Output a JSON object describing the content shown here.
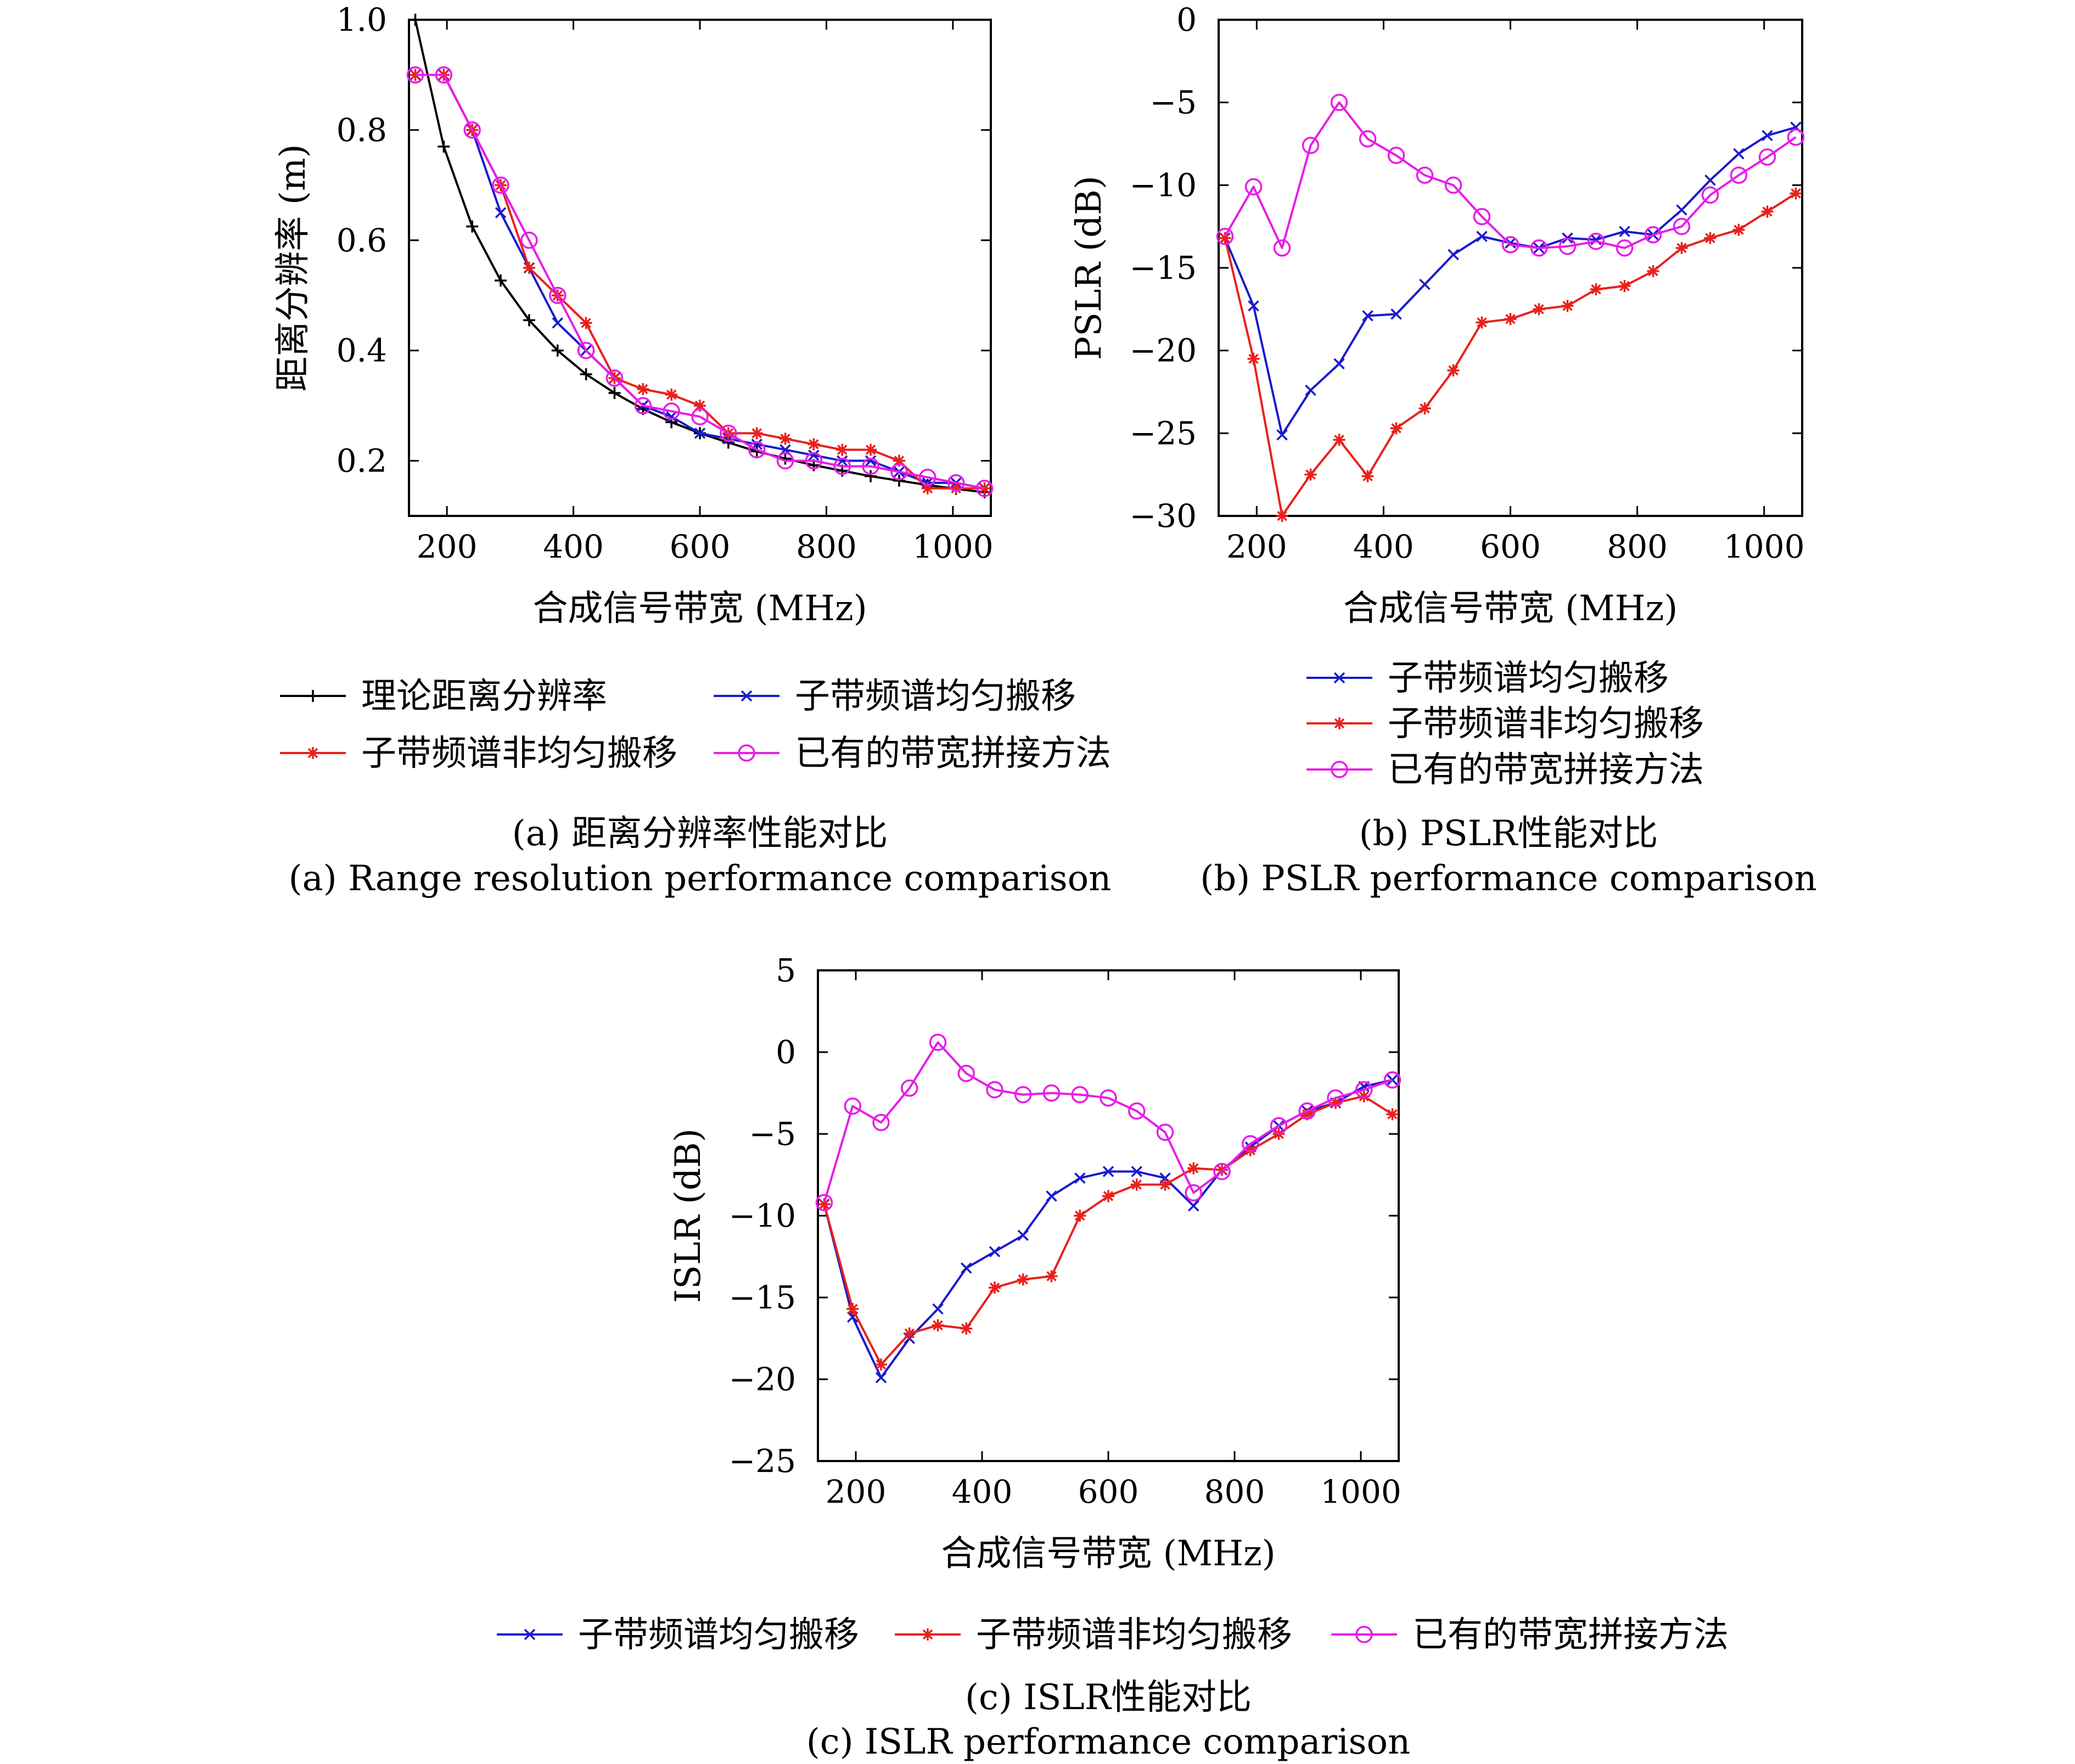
{
  "colors": {
    "theory": "#000000",
    "uniform": "#1a1acc",
    "nonuniform": "#e8211c",
    "existing": "#e61ee6",
    "axis": "#000000"
  },
  "chart_data": [
    {
      "id": "a",
      "type": "line",
      "xlabel": "合成信号带宽 (MHz)",
      "ylabel": "距离分辨率 (m)",
      "xlim": [
        140,
        1060
      ],
      "ylim": [
        0.1,
        1.0
      ],
      "xticks": [
        200,
        400,
        600,
        800,
        1000
      ],
      "yticks": [
        0.2,
        0.4,
        0.6,
        0.8,
        1.0
      ],
      "ytick_labels": [
        "0.2",
        "0.4",
        "0.6",
        "0.8",
        "1.0"
      ],
      "caption_cn": "(a) 距离分辨率性能对比",
      "caption_en": "(a) Range resolution performance comparison",
      "series": [
        {
          "key": "theory",
          "name": "理论距离分辨率",
          "marker": "plus",
          "x": [
            150,
            195,
            240,
            285,
            330,
            375,
            420,
            465,
            510,
            555,
            600,
            645,
            690,
            735,
            780,
            825,
            870,
            915,
            960,
            1005,
            1050
          ],
          "y": [
            1.0,
            0.77,
            0.625,
            0.527,
            0.455,
            0.4,
            0.357,
            0.323,
            0.294,
            0.27,
            0.25,
            0.233,
            0.217,
            0.204,
            0.192,
            0.182,
            0.172,
            0.164,
            0.156,
            0.149,
            0.143
          ]
        },
        {
          "key": "uniform",
          "name": "子带频谱均匀搬移",
          "marker": "x",
          "x": [
            150,
            195,
            240,
            285,
            330,
            375,
            420,
            465,
            510,
            555,
            600,
            645,
            690,
            735,
            780,
            825,
            870,
            915,
            960,
            1005,
            1050
          ],
          "y": [
            0.9,
            0.9,
            0.8,
            0.65,
            0.55,
            0.45,
            0.4,
            0.35,
            0.3,
            0.28,
            0.25,
            0.24,
            0.23,
            0.22,
            0.21,
            0.2,
            0.2,
            0.18,
            0.16,
            0.16,
            0.15
          ]
        },
        {
          "key": "nonuniform",
          "name": "子带频谱非均匀搬移",
          "marker": "star",
          "x": [
            150,
            195,
            240,
            285,
            330,
            375,
            420,
            465,
            510,
            555,
            600,
            645,
            690,
            735,
            780,
            825,
            870,
            915,
            960,
            1005,
            1050
          ],
          "y": [
            0.9,
            0.9,
            0.8,
            0.7,
            0.55,
            0.5,
            0.45,
            0.35,
            0.33,
            0.32,
            0.3,
            0.25,
            0.25,
            0.24,
            0.23,
            0.22,
            0.22,
            0.2,
            0.15,
            0.15,
            0.15
          ]
        },
        {
          "key": "existing",
          "name": "已有的带宽拼接方法",
          "marker": "circle",
          "x": [
            150,
            195,
            240,
            285,
            330,
            375,
            420,
            465,
            510,
            555,
            600,
            645,
            690,
            735,
            780,
            825,
            870,
            915,
            960,
            1005,
            1050
          ],
          "y": [
            0.9,
            0.9,
            0.8,
            0.7,
            0.6,
            0.5,
            0.4,
            0.35,
            0.3,
            0.29,
            0.28,
            0.25,
            0.22,
            0.2,
            0.2,
            0.19,
            0.19,
            0.18,
            0.17,
            0.16,
            0.15
          ]
        }
      ]
    },
    {
      "id": "b",
      "type": "line",
      "xlabel": "合成信号带宽 (MHz)",
      "ylabel": "PSLR (dB)",
      "xlim": [
        140,
        1060
      ],
      "ylim": [
        -30,
        0
      ],
      "xticks": [
        200,
        400,
        600,
        800,
        1000
      ],
      "yticks": [
        -30,
        -25,
        -20,
        -15,
        -10,
        -5,
        0
      ],
      "ytick_labels": [
        "−30",
        "−25",
        "−20",
        "−15",
        "−10",
        "−5",
        "0"
      ],
      "caption_cn": "(b) PSLR性能对比",
      "caption_en": "(b) PSLR performance comparison",
      "series": [
        {
          "key": "uniform",
          "name": "子带频谱均匀搬移",
          "marker": "x",
          "x": [
            150,
            195,
            240,
            285,
            330,
            375,
            420,
            465,
            510,
            555,
            600,
            645,
            690,
            735,
            780,
            825,
            870,
            915,
            960,
            1005,
            1050
          ],
          "y": [
            -13.2,
            -17.3,
            -25.1,
            -22.4,
            -20.8,
            -17.9,
            -17.8,
            -16,
            -14.2,
            -13.1,
            -13.5,
            -13.8,
            -13.2,
            -13.3,
            -12.8,
            -13,
            -11.5,
            -9.7,
            -8.1,
            -7,
            -6.5
          ]
        },
        {
          "key": "nonuniform",
          "name": "子带频谱非均匀搬移",
          "marker": "star",
          "x": [
            150,
            195,
            240,
            285,
            330,
            375,
            420,
            465,
            510,
            555,
            600,
            645,
            690,
            735,
            780,
            825,
            870,
            915,
            960,
            1005,
            1050
          ],
          "y": [
            -13.2,
            -20.5,
            -30,
            -27.5,
            -25.4,
            -27.6,
            -24.7,
            -23.5,
            -21.2,
            -18.3,
            -18.1,
            -17.5,
            -17.3,
            -16.3,
            -16.1,
            -15.2,
            -13.8,
            -13.2,
            -12.7,
            -11.6,
            -10.5
          ]
        },
        {
          "key": "existing",
          "name": "已有的带宽拼接方法",
          "marker": "circle",
          "x": [
            150,
            195,
            240,
            285,
            330,
            375,
            420,
            465,
            510,
            555,
            600,
            645,
            690,
            735,
            780,
            825,
            870,
            915,
            960,
            1005,
            1050
          ],
          "y": [
            -13.1,
            -10.1,
            -13.8,
            -7.6,
            -5,
            -7.2,
            -8.2,
            -9.4,
            -10,
            -11.9,
            -13.6,
            -13.8,
            -13.7,
            -13.4,
            -13.8,
            -13,
            -12.5,
            -10.6,
            -9.4,
            -8.3,
            -7.1
          ]
        }
      ]
    },
    {
      "id": "c",
      "type": "line",
      "xlabel": "合成信号带宽 (MHz)",
      "ylabel": "ISLR (dB)",
      "xlim": [
        140,
        1060
      ],
      "ylim": [
        -25,
        5
      ],
      "xticks": [
        200,
        400,
        600,
        800,
        1000
      ],
      "yticks": [
        -25,
        -20,
        -15,
        -10,
        -5,
        0,
        5
      ],
      "ytick_labels": [
        "−25",
        "−20",
        "−15",
        "−10",
        "−5",
        "0",
        "5"
      ],
      "caption_cn": "(c) ISLR性能对比",
      "caption_en": "(c) ISLR performance comparison",
      "series": [
        {
          "key": "uniform",
          "name": "子带频谱均匀搬移",
          "marker": "x",
          "x": [
            150,
            195,
            240,
            285,
            330,
            375,
            420,
            465,
            510,
            555,
            600,
            645,
            690,
            735,
            780,
            825,
            870,
            915,
            960,
            1005,
            1050
          ],
          "y": [
            -9.3,
            -16.2,
            -19.9,
            -17.5,
            -15.7,
            -13.2,
            -12.2,
            -11.2,
            -8.8,
            -7.7,
            -7.3,
            -7.3,
            -7.7,
            -9.4,
            -7.2,
            -5.8,
            -4.5,
            -3.6,
            -3.1,
            -2.1,
            -1.7
          ]
        },
        {
          "key": "nonuniform",
          "name": "子带频谱非均匀搬移",
          "marker": "star",
          "x": [
            150,
            195,
            240,
            285,
            330,
            375,
            420,
            465,
            510,
            555,
            600,
            645,
            690,
            735,
            780,
            825,
            870,
            915,
            960,
            1005,
            1050
          ],
          "y": [
            -9.3,
            -15.7,
            -19.1,
            -17.2,
            -16.7,
            -16.9,
            -14.4,
            -13.9,
            -13.7,
            -10,
            -8.8,
            -8.1,
            -8.1,
            -7.1,
            -7.2,
            -6,
            -5,
            -3.8,
            -3.1,
            -2.7,
            -3.8
          ]
        },
        {
          "key": "existing",
          "name": "已有的带宽拼接方法",
          "marker": "circle",
          "x": [
            150,
            195,
            240,
            285,
            330,
            375,
            420,
            465,
            510,
            555,
            600,
            645,
            690,
            735,
            780,
            825,
            870,
            915,
            960,
            1005,
            1050
          ],
          "y": [
            -9.2,
            -3.3,
            -4.3,
            -2.2,
            0.6,
            -1.3,
            -2.3,
            -2.6,
            -2.5,
            -2.6,
            -2.8,
            -3.6,
            -4.9,
            -8.6,
            -7.3,
            -5.6,
            -4.5,
            -3.6,
            -2.8,
            -2.3,
            -1.7
          ]
        }
      ]
    }
  ]
}
